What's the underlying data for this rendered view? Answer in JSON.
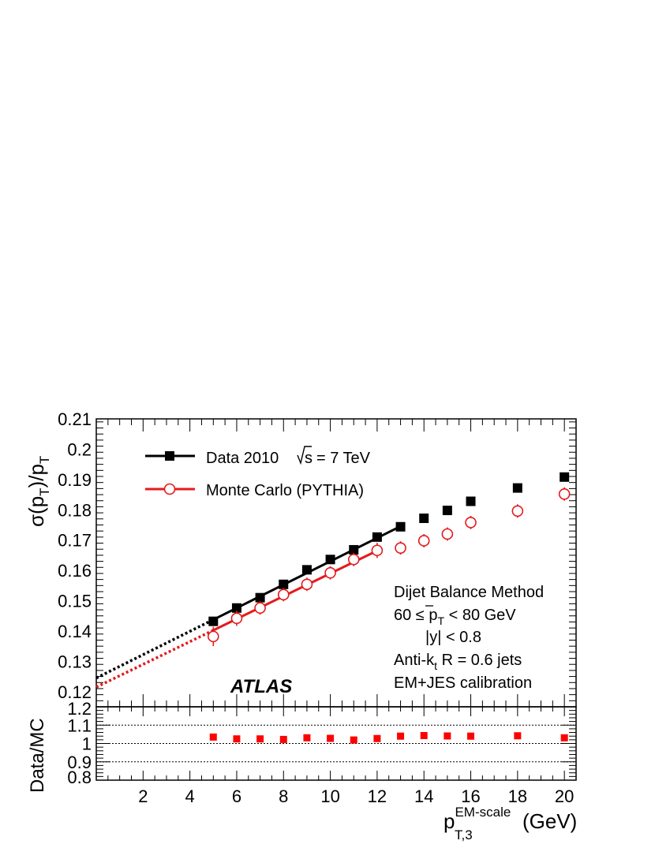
{
  "chart_data": {
    "type": "scatter",
    "experiment_label": "ATLAS",
    "xlabel": {
      "base": "p",
      "sup": "EM-scale",
      "sub": "T,3",
      "unit": "(GeV)"
    },
    "xlim": [
      0,
      20.5
    ],
    "x_ticks": [
      2,
      4,
      6,
      8,
      10,
      12,
      14,
      16,
      18,
      20
    ],
    "top_panel": {
      "ylabel": {
        "sigma": "σ(p",
        "sub1": "T",
        "mid": ")/p",
        "sub2": "T"
      },
      "ylim": [
        0.115,
        0.21
      ],
      "y_ticks": [
        0.12,
        0.13,
        0.14,
        0.15,
        0.16,
        0.17,
        0.18,
        0.19,
        0.2,
        0.21
      ],
      "y_tick_labels": [
        "0.12",
        "0.13",
        "0.14",
        "0.15",
        "0.16",
        "0.17",
        "0.18",
        "0.19",
        "0.2",
        "0.21"
      ],
      "series": [
        {
          "name": "Data 2010",
          "legend_extra": "= 7 TeV",
          "legend_root": "s",
          "marker": "filled-square",
          "color": "#000000",
          "x": [
            5,
            6,
            7,
            8,
            9,
            10,
            11,
            12,
            13,
            14,
            15,
            16,
            18,
            20
          ],
          "y": [
            0.1432,
            0.1476,
            0.151,
            0.1554,
            0.1602,
            0.1636,
            0.1668,
            0.171,
            0.1744,
            0.1772,
            0.1798,
            0.1828,
            0.1872,
            0.1908
          ],
          "err": [
            0.0008,
            0.0008,
            0.0008,
            0.0008,
            0.0008,
            0.0008,
            0.0008,
            0.0008,
            0.0008,
            0.0008,
            0.0008,
            0.0008,
            0.0008,
            0.0008
          ],
          "fit": {
            "x_solid": [
              5,
              13
            ],
            "x_dotted": [
              0,
              5
            ],
            "y_at_0": 0.1245,
            "slope": 0.00385
          }
        },
        {
          "name": "Monte Carlo (PYTHIA)",
          "marker": "open-circle",
          "color": "#e41a1c",
          "x": [
            5,
            6,
            7,
            8,
            9,
            10,
            11,
            12,
            13,
            14,
            15,
            16,
            18,
            20
          ],
          "y": [
            0.1382,
            0.1442,
            0.1476,
            0.152,
            0.1554,
            0.1592,
            0.1636,
            0.1666,
            0.1674,
            0.1698,
            0.172,
            0.1758,
            0.1796,
            0.1852
          ],
          "err": [
            0.0032,
            0.0025,
            0.0022,
            0.0022,
            0.0022,
            0.0022,
            0.0022,
            0.0025,
            0.0022,
            0.0022,
            0.0022,
            0.0022,
            0.0022,
            0.0022
          ],
          "fit": {
            "x_solid": [
              5,
              12
            ],
            "x_dotted": [
              0,
              5
            ],
            "y_at_0": 0.1215,
            "slope": 0.00375
          }
        }
      ],
      "annotations": [
        "Dijet Balance Method",
        "60 ≤ p",
        "T",
        " < 80 GeV",
        "|y| < 0.8",
        "Anti-k",
        "t",
        " R = 0.6 jets",
        "EM+JES calibration"
      ]
    },
    "bottom_panel": {
      "ylabel": "Data/MC",
      "ylim": [
        0.8,
        1.2
      ],
      "y_ticks": [
        0.8,
        0.9,
        1.0,
        1.1,
        1.2
      ],
      "y_tick_labels": [
        "0.8",
        "0.9",
        "1",
        "1.1",
        "1.2"
      ],
      "reference_lines": [
        0.9,
        1.0,
        1.1
      ],
      "series": {
        "color": "#ff0000",
        "x": [
          5,
          6,
          7,
          8,
          9,
          10,
          11,
          12,
          13,
          14,
          15,
          16,
          18,
          20
        ],
        "y": [
          1.035,
          1.025,
          1.025,
          1.022,
          1.031,
          1.028,
          1.019,
          1.027,
          1.04,
          1.043,
          1.041,
          1.04,
          1.042,
          1.031
        ]
      }
    }
  }
}
